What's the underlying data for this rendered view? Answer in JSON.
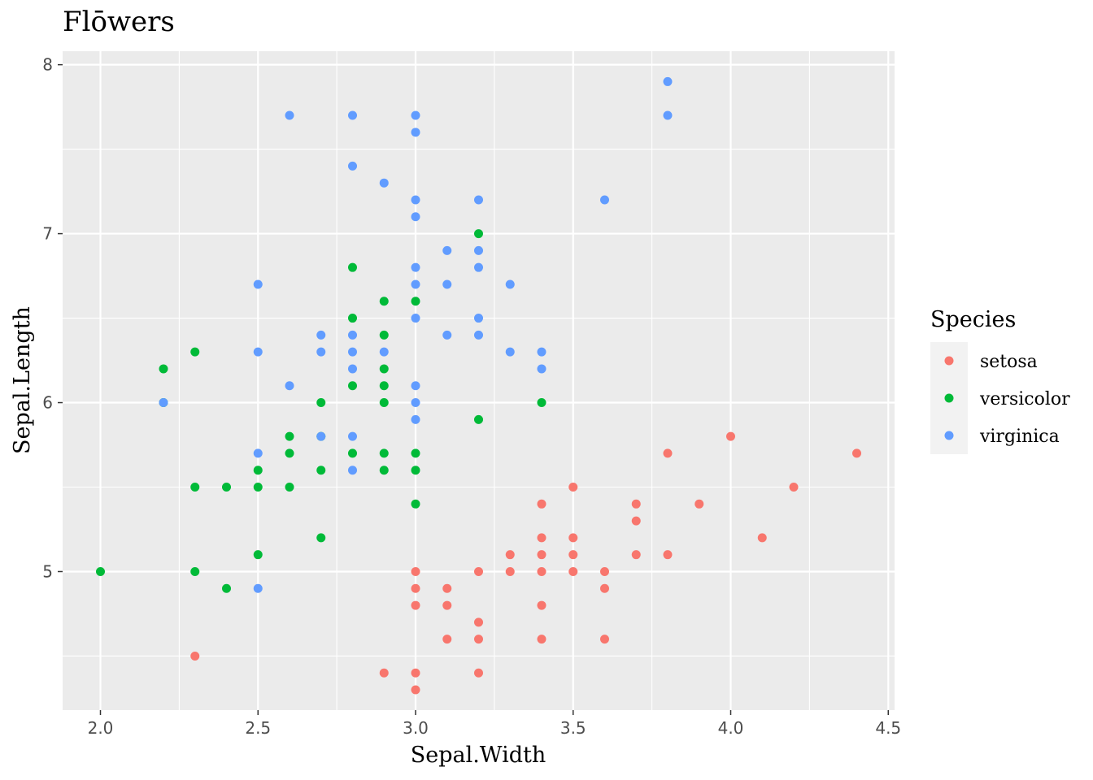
{
  "chart_data": {
    "type": "scatter",
    "title": "Flōwers",
    "xlabel": "Sepal.Width",
    "ylabel": "Sepal.Length",
    "xlim": [
      1.88,
      4.52
    ],
    "ylim": [
      4.18,
      8.08
    ],
    "x_ticks": [
      2.0,
      2.5,
      3.0,
      3.5,
      4.0,
      4.5
    ],
    "x_tick_labels": [
      "2.0",
      "2.5",
      "3.0",
      "3.5",
      "4.0",
      "4.5"
    ],
    "y_ticks": [
      5,
      6,
      7,
      8
    ],
    "y_tick_labels": [
      "5",
      "6",
      "7",
      "8"
    ],
    "grid": true,
    "legend": {
      "title": "Species",
      "placement": "right"
    },
    "series": [
      {
        "name": "setosa",
        "color": "#F8766D",
        "points": [
          [
            3.0,
            5.0
          ],
          [
            3.0,
            4.9
          ],
          [
            3.0,
            4.8
          ],
          [
            3.0,
            4.4
          ],
          [
            3.0,
            4.3
          ],
          [
            2.9,
            4.4
          ],
          [
            2.3,
            4.5
          ],
          [
            3.1,
            4.9
          ],
          [
            3.1,
            4.8
          ],
          [
            3.1,
            4.6
          ],
          [
            3.2,
            5.0
          ],
          [
            3.2,
            4.7
          ],
          [
            3.2,
            4.6
          ],
          [
            3.2,
            4.4
          ],
          [
            3.3,
            5.1
          ],
          [
            3.3,
            5.0
          ],
          [
            3.4,
            5.4
          ],
          [
            3.4,
            5.2
          ],
          [
            3.4,
            5.1
          ],
          [
            3.4,
            5.0
          ],
          [
            3.4,
            4.8
          ],
          [
            3.4,
            4.6
          ],
          [
            3.5,
            5.5
          ],
          [
            3.5,
            5.2
          ],
          [
            3.5,
            5.1
          ],
          [
            3.5,
            5.0
          ],
          [
            3.6,
            5.0
          ],
          [
            3.6,
            4.9
          ],
          [
            3.6,
            4.6
          ],
          [
            3.7,
            5.4
          ],
          [
            3.7,
            5.3
          ],
          [
            3.7,
            5.1
          ],
          [
            3.8,
            5.7
          ],
          [
            3.8,
            5.1
          ],
          [
            3.9,
            5.4
          ],
          [
            4.0,
            5.8
          ],
          [
            4.1,
            5.2
          ],
          [
            4.2,
            5.5
          ],
          [
            4.4,
            5.7
          ]
        ]
      },
      {
        "name": "versicolor",
        "color": "#00BA38",
        "points": [
          [
            2.0,
            5.0
          ],
          [
            2.2,
            6.2
          ],
          [
            2.2,
            6.0
          ],
          [
            2.3,
            6.3
          ],
          [
            2.3,
            5.5
          ],
          [
            2.3,
            5.0
          ],
          [
            2.4,
            5.5
          ],
          [
            2.4,
            4.9
          ],
          [
            2.5,
            5.6
          ],
          [
            2.5,
            5.5
          ],
          [
            2.5,
            5.1
          ],
          [
            2.6,
            5.8
          ],
          [
            2.6,
            5.7
          ],
          [
            2.6,
            5.5
          ],
          [
            2.7,
            6.0
          ],
          [
            2.7,
            5.8
          ],
          [
            2.7,
            5.6
          ],
          [
            2.7,
            5.2
          ],
          [
            2.8,
            6.8
          ],
          [
            2.8,
            6.5
          ],
          [
            2.8,
            6.1
          ],
          [
            2.8,
            5.7
          ],
          [
            2.9,
            6.6
          ],
          [
            2.9,
            6.4
          ],
          [
            2.9,
            6.2
          ],
          [
            2.9,
            6.1
          ],
          [
            2.9,
            6.0
          ],
          [
            2.9,
            5.7
          ],
          [
            2.9,
            5.6
          ],
          [
            3.0,
            6.6
          ],
          [
            3.0,
            5.7
          ],
          [
            3.0,
            5.6
          ],
          [
            3.0,
            5.4
          ],
          [
            3.2,
            7.0
          ],
          [
            3.2,
            5.9
          ],
          [
            3.4,
            6.0
          ]
        ]
      },
      {
        "name": "virginica",
        "color": "#619CFF",
        "points": [
          [
            2.2,
            6.0
          ],
          [
            2.5,
            6.7
          ],
          [
            2.5,
            6.3
          ],
          [
            2.5,
            5.7
          ],
          [
            2.5,
            4.9
          ],
          [
            2.6,
            7.7
          ],
          [
            2.6,
            6.1
          ],
          [
            2.7,
            6.4
          ],
          [
            2.7,
            6.3
          ],
          [
            2.7,
            5.8
          ],
          [
            2.8,
            7.7
          ],
          [
            2.8,
            7.4
          ],
          [
            2.8,
            6.4
          ],
          [
            2.8,
            6.3
          ],
          [
            2.8,
            6.2
          ],
          [
            2.8,
            5.8
          ],
          [
            2.8,
            5.6
          ],
          [
            2.9,
            7.3
          ],
          [
            2.9,
            6.3
          ],
          [
            3.0,
            7.7
          ],
          [
            3.0,
            7.6
          ],
          [
            3.0,
            7.2
          ],
          [
            3.0,
            7.1
          ],
          [
            3.0,
            6.8
          ],
          [
            3.0,
            6.7
          ],
          [
            3.0,
            6.5
          ],
          [
            3.0,
            6.1
          ],
          [
            3.0,
            6.0
          ],
          [
            3.0,
            5.9
          ],
          [
            3.1,
            6.9
          ],
          [
            3.1,
            6.7
          ],
          [
            3.1,
            6.4
          ],
          [
            3.2,
            7.2
          ],
          [
            3.2,
            6.9
          ],
          [
            3.2,
            6.8
          ],
          [
            3.2,
            6.5
          ],
          [
            3.2,
            6.4
          ],
          [
            3.3,
            6.7
          ],
          [
            3.3,
            6.3
          ],
          [
            3.4,
            6.3
          ],
          [
            3.4,
            6.2
          ],
          [
            3.6,
            7.2
          ],
          [
            3.8,
            7.9
          ],
          [
            3.8,
            7.7
          ]
        ]
      }
    ]
  }
}
